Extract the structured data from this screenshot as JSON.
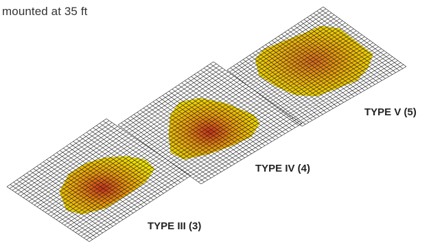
{
  "caption": "mounted at 35 ft",
  "panels": [
    {
      "id": "type-iii",
      "label": "TYPE III (3)"
    },
    {
      "id": "type-iv",
      "label": "TYPE IV (4)"
    },
    {
      "id": "type-v",
      "label": "TYPE V (5)"
    }
  ],
  "colors": {
    "grid": "#1a1a1a",
    "zone_outer": "#f2e600",
    "zone_mid": "#e89a0c",
    "zone_core": "#c8301a"
  }
}
